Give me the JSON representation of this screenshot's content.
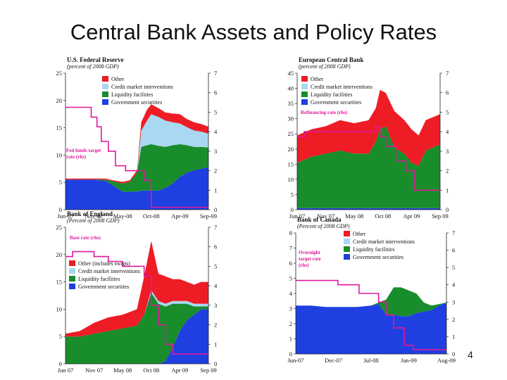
{
  "title": "Central Bank Assets and Policy Rates",
  "page_number": "4",
  "colors": {
    "other": "#ee1c24",
    "credit": "#a9d8f3",
    "liquidity": "#198c2c",
    "government": "#1f3fe0",
    "policy_rate": "#e0199b"
  },
  "chart_data": [
    {
      "id": "fed",
      "type": "area",
      "title": "U.S. Federal Reserve",
      "subtitle": "(percent of 2008 GDP)",
      "x_ticks": [
        "Jun-07",
        "Nov-07",
        "May-08",
        "Oct-08",
        "Apr-09",
        "Sep-09"
      ],
      "y_left": {
        "min": 0,
        "max": 25,
        "ticks": [
          0,
          5,
          10,
          15,
          20,
          25
        ]
      },
      "y_right": {
        "min": 0,
        "max": 7,
        "ticks": [
          0,
          1,
          2,
          3,
          4,
          5,
          6,
          7
        ]
      },
      "legend": [
        "Other",
        "Credit market interventions",
        "Liquidity facilities",
        "Government securities"
      ],
      "x": [
        0,
        0.1,
        0.2,
        0.28,
        0.33,
        0.4,
        0.45,
        0.5,
        0.53,
        0.57,
        0.6,
        0.65,
        0.7,
        0.75,
        0.8,
        0.85,
        0.9,
        0.95,
        1
      ],
      "series": [
        {
          "name": "Government securities",
          "values": [
            5.5,
            5.5,
            5.5,
            5.3,
            4.5,
            3.3,
            3.3,
            3.3,
            3.5,
            3.5,
            3.5,
            3.5,
            4,
            4.8,
            6,
            6.8,
            7.2,
            7.5,
            7.8
          ]
        },
        {
          "name": "Liquidity facilities",
          "values": [
            0,
            0,
            0,
            0.2,
            0.7,
            1.5,
            1.8,
            3.5,
            8,
            8.3,
            8.5,
            8.2,
            7.5,
            7,
            6,
            5,
            4.3,
            4,
            3.6
          ]
        },
        {
          "name": "Credit market interventions",
          "values": [
            0,
            0,
            0,
            0,
            0,
            0,
            0,
            0,
            3,
            4.5,
            5.5,
            5.3,
            4.8,
            4.2,
            3.8,
            3.3,
            3,
            2.8,
            2.5
          ]
        },
        {
          "name": "Other",
          "values": [
            0.2,
            0.2,
            0.2,
            0.2,
            0.2,
            0.3,
            0.3,
            0.4,
            1.5,
            2,
            1.8,
            1.6,
            1.5,
            1.6,
            1.7,
            1.5,
            1.5,
            1.4,
            1.3
          ]
        }
      ],
      "rate": {
        "name": "Fed funds target rate (rhs)",
        "x": [
          0,
          0.18,
          0.18,
          0.22,
          0.22,
          0.25,
          0.25,
          0.3,
          0.3,
          0.35,
          0.35,
          0.42,
          0.42,
          0.55,
          0.55,
          0.6,
          0.6,
          1
        ],
        "values": [
          5.25,
          5.25,
          4.75,
          4.75,
          4.25,
          4.25,
          3.5,
          3.5,
          3,
          3,
          2.25,
          2.25,
          2,
          2,
          1.5,
          1.5,
          0.125,
          0.125
        ]
      },
      "rate_label": [
        "Fed funds target",
        "rate (rhs)"
      ]
    },
    {
      "id": "ecb",
      "type": "area",
      "title": "European Central Bank",
      "subtitle": "(percent of 2008 GDP)",
      "x_ticks": [
        "Jun 07",
        "Nov 07",
        "May 08",
        "Oct 08",
        "Apr 09",
        "Sep 09"
      ],
      "y_left": {
        "min": 0,
        "max": 45,
        "ticks": [
          0,
          5,
          10,
          15,
          20,
          25,
          30,
          35,
          40,
          45
        ]
      },
      "y_right": {
        "min": 0,
        "max": 7,
        "ticks": [
          0,
          1,
          2,
          3,
          4,
          5,
          6,
          7
        ]
      },
      "legend": [
        "Other",
        "Credit market interventions",
        "Liquidity facilities",
        "Government securities"
      ],
      "x": [
        0,
        0.1,
        0.2,
        0.3,
        0.4,
        0.5,
        0.55,
        0.58,
        0.62,
        0.68,
        0.75,
        0.8,
        0.85,
        0.9,
        0.95,
        1
      ],
      "series": [
        {
          "name": "Government securities",
          "values": [
            0.5,
            0.5,
            0.5,
            0.5,
            0.5,
            0.5,
            0.5,
            0.5,
            0.5,
            0.5,
            0.5,
            0.5,
            0.5,
            0.5,
            0.5,
            0.5
          ]
        },
        {
          "name": "Liquidity facilities",
          "values": [
            15,
            17,
            18,
            19,
            18,
            18,
            22,
            26,
            27,
            20,
            18,
            15,
            14,
            19,
            20,
            21
          ]
        },
        {
          "name": "Credit market interventions",
          "values": [
            0,
            0,
            0,
            0,
            0,
            0,
            0,
            0,
            0,
            0,
            0,
            0,
            0,
            0,
            0,
            0
          ]
        },
        {
          "name": "Other",
          "values": [
            9,
            9,
            9,
            10,
            10,
            11,
            11,
            13,
            11,
            12,
            11,
            11,
            10,
            10,
            10,
            10
          ]
        }
      ],
      "rate": {
        "name": "Refinancing rate (rhs)",
        "x": [
          0,
          0.05,
          0.05,
          0.55,
          0.55,
          0.58,
          0.58,
          0.62,
          0.62,
          0.7,
          0.7,
          0.76,
          0.76,
          0.82,
          0.82,
          1
        ],
        "values": [
          3.75,
          3.75,
          4,
          4,
          4.25,
          4.25,
          3.75,
          3.75,
          3.25,
          3.25,
          2.5,
          2.5,
          2,
          2,
          1,
          1
        ]
      },
      "rate_label": [
        "Refinancing rate (rhs)"
      ]
    },
    {
      "id": "boe",
      "type": "area",
      "title": "Bank of England",
      "subtitle": "(Percent of 2008 GDP)",
      "x_ticks": [
        "Jun 07",
        "Nov 07",
        "May 08",
        "Oct 08",
        "Apr 09",
        "Sep 09"
      ],
      "y_left": {
        "min": 0,
        "max": 25,
        "ticks": [
          0,
          5,
          10,
          15,
          20,
          25
        ]
      },
      "y_right": {
        "min": 0,
        "max": 7,
        "ticks": [
          0,
          1,
          2,
          3,
          4,
          5,
          6,
          7
        ]
      },
      "legend": [
        "Other (includes swaps)",
        "Credit market interventions",
        "Liquidity facilities",
        "Government securities"
      ],
      "x": [
        0,
        0.1,
        0.2,
        0.3,
        0.4,
        0.5,
        0.55,
        0.6,
        0.65,
        0.7,
        0.75,
        0.8,
        0.85,
        0.9,
        0.95,
        1
      ],
      "series": [
        {
          "name": "Government securities",
          "values": [
            0,
            0,
            0,
            0,
            0,
            0,
            0,
            0,
            0,
            0.5,
            3,
            6,
            8,
            9,
            10,
            10
          ]
        },
        {
          "name": "Liquidity facilities",
          "values": [
            5,
            5,
            5.5,
            6,
            6.5,
            7,
            9,
            13,
            11,
            10,
            8,
            5,
            3,
            1.5,
            0.5,
            0.5
          ]
        },
        {
          "name": "Credit market interventions",
          "values": [
            0,
            0,
            0,
            0,
            0,
            0,
            0,
            0.5,
            0.5,
            0.5,
            0.5,
            0.5,
            0.5,
            0.5,
            0.5,
            0.5
          ]
        },
        {
          "name": "Other (includes swaps)",
          "values": [
            0.5,
            1,
            2,
            2.5,
            2.5,
            3,
            7,
            9,
            5,
            5,
            4,
            4,
            3.5,
            3.5,
            4,
            4
          ]
        }
      ],
      "rate": {
        "name": "Base rate (rhs)",
        "x": [
          0,
          0.05,
          0.05,
          0.2,
          0.2,
          0.3,
          0.3,
          0.4,
          0.4,
          0.55,
          0.55,
          0.6,
          0.6,
          0.65,
          0.65,
          0.7,
          0.7,
          0.75,
          0.75,
          1
        ],
        "values": [
          5.5,
          5.5,
          5.75,
          5.75,
          5.5,
          5.5,
          5.25,
          5.25,
          5,
          5,
          4.5,
          4.5,
          3,
          3,
          2,
          2,
          1,
          1,
          0.5,
          0.5
        ]
      },
      "rate_label": [
        "Base rate (rhs)"
      ]
    },
    {
      "id": "boc",
      "type": "area",
      "title": "Bank of Canada",
      "subtitle": "(Percent of 2008 GDP)",
      "x_ticks": [
        "Jun-07",
        "Dec-07",
        "Jul-08",
        "Jan-09",
        "Aug-09"
      ],
      "y_left": {
        "min": 0,
        "max": 8,
        "ticks": [
          0,
          1,
          2,
          3,
          4,
          5,
          6,
          7,
          8
        ]
      },
      "y_right": {
        "min": 0,
        "max": 7,
        "ticks": [
          0,
          1,
          2,
          3,
          4,
          5,
          6,
          7
        ]
      },
      "legend": [
        "Other",
        "Credit market interventions",
        "Liquidity facilities",
        "Government securities"
      ],
      "x": [
        0,
        0.1,
        0.2,
        0.3,
        0.4,
        0.5,
        0.55,
        0.6,
        0.65,
        0.7,
        0.75,
        0.8,
        0.85,
        0.9,
        0.95,
        1
      ],
      "series": [
        {
          "name": "Government securities",
          "values": [
            3.2,
            3.2,
            3.1,
            3.1,
            3.1,
            3.2,
            3.3,
            2.6,
            2.6,
            2.5,
            2.5,
            2.7,
            2.8,
            2.9,
            3.2,
            3.4
          ]
        },
        {
          "name": "Liquidity facilities",
          "values": [
            0,
            0,
            0,
            0,
            0,
            0,
            0.1,
            1,
            1.8,
            1.9,
            1.7,
            1.3,
            0.6,
            0.3,
            0.1,
            0
          ]
        },
        {
          "name": "Credit market interventions",
          "values": [
            0,
            0,
            0,
            0,
            0,
            0,
            0,
            0,
            0,
            0,
            0,
            0,
            0,
            0,
            0,
            0
          ]
        },
        {
          "name": "Other",
          "values": [
            0,
            0,
            0,
            0,
            0,
            0,
            0,
            0,
            0,
            0,
            0,
            0,
            0,
            0,
            0,
            0
          ]
        }
      ],
      "rate": {
        "name": "Overnight target rate (rhs)",
        "x": [
          0,
          0.28,
          0.28,
          0.42,
          0.42,
          0.55,
          0.55,
          0.6,
          0.6,
          0.65,
          0.65,
          0.72,
          0.72,
          0.78,
          0.78,
          1
        ],
        "values": [
          4.25,
          4.25,
          4,
          4,
          3.5,
          3.5,
          3,
          3,
          2.25,
          2.25,
          1.5,
          1.5,
          0.5,
          0.5,
          0.25,
          0.25
        ]
      },
      "rate_label": [
        "Overnight",
        "target rate",
        "(rhs)"
      ]
    }
  ]
}
